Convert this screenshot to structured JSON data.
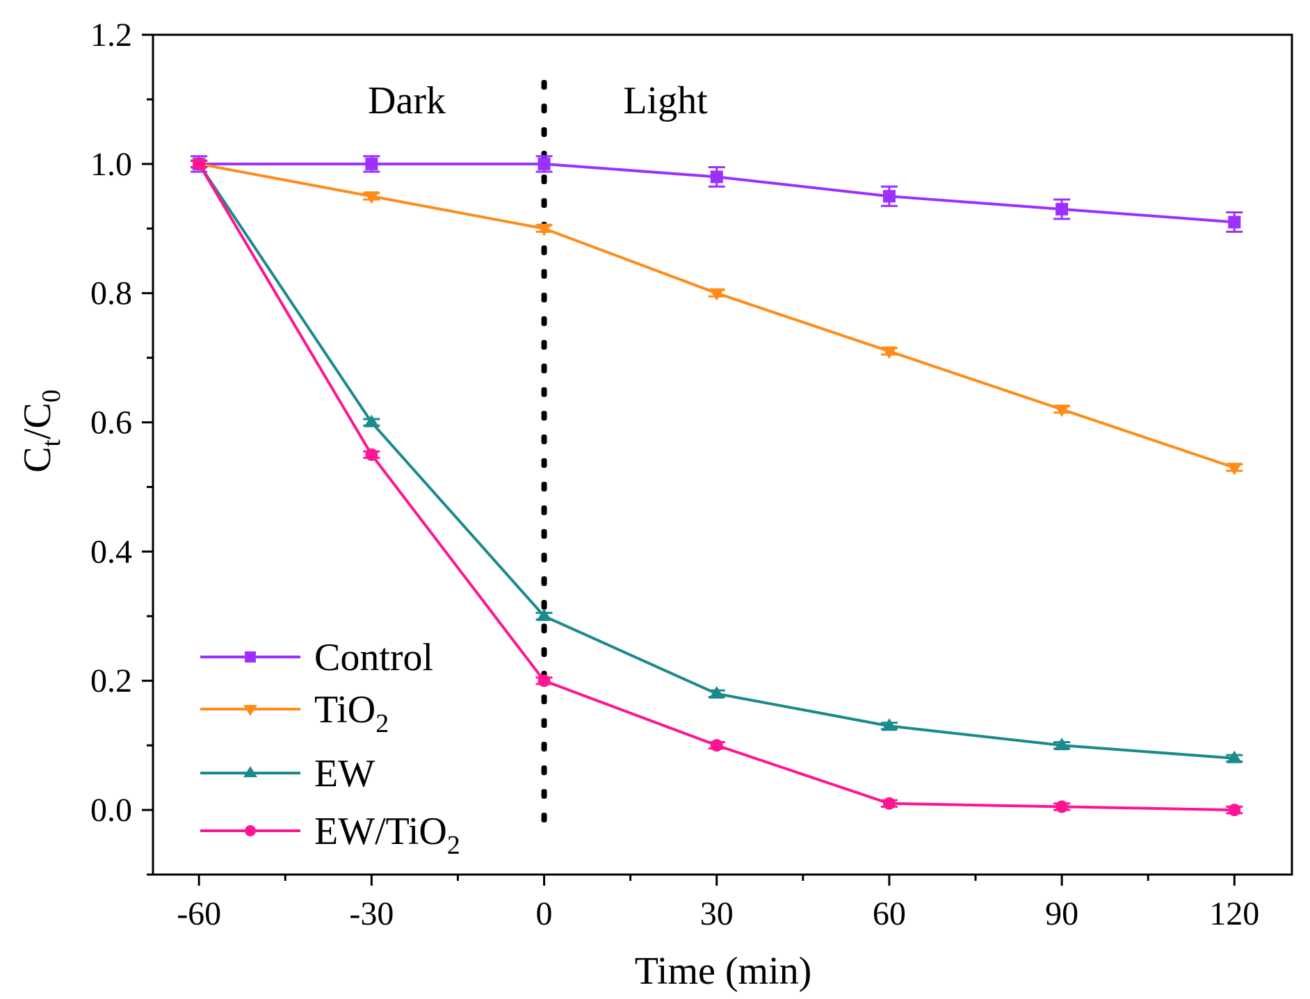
{
  "chart_data": {
    "type": "line",
    "title": "",
    "xlabel": "Time (min)",
    "ylabel": {
      "main": "C",
      "sub1": "t",
      "sep": "/C",
      "sub2": "0"
    },
    "xlim": [
      -68,
      130
    ],
    "ylim": [
      -0.1,
      1.2
    ],
    "xticks": [
      -60,
      -30,
      0,
      30,
      60,
      90,
      120
    ],
    "xtick_labels": [
      "-60",
      "-30",
      "0",
      "30",
      "60",
      "90",
      "120"
    ],
    "yticks": [
      0.0,
      0.2,
      0.4,
      0.6,
      0.8,
      1.0,
      1.2
    ],
    "ytick_labels": [
      "0.0",
      "0.2",
      "0.4",
      "0.6",
      "0.8",
      "1.0",
      "1.2"
    ],
    "x": [
      -60,
      -30,
      0,
      30,
      60,
      90,
      120
    ],
    "divider_x": 0,
    "annotations": {
      "dark": "Dark",
      "light": "Light"
    },
    "legend_position": "bottom-left",
    "series": [
      {
        "name": "Control",
        "label_main": "Control",
        "label_sub": "",
        "label_after": "",
        "color": "#9b30ff",
        "marker": "square",
        "values": [
          1.0,
          1.0,
          1.0,
          0.98,
          0.95,
          0.93,
          0.91
        ],
        "errors": [
          0.012,
          0.012,
          0.012,
          0.015,
          0.015,
          0.015,
          0.015
        ]
      },
      {
        "name": "TiO2",
        "label_main": "TiO",
        "label_sub": "2",
        "label_after": "",
        "color": "#ff8c1a",
        "marker": "triangle-down",
        "values": [
          1.0,
          0.95,
          0.9,
          0.8,
          0.71,
          0.62,
          0.53
        ],
        "errors": [
          0.005,
          0.005,
          0.005,
          0.005,
          0.005,
          0.005,
          0.005
        ]
      },
      {
        "name": "EW",
        "label_main": "EW",
        "label_sub": "",
        "label_after": "",
        "color": "#1a8a8a",
        "marker": "triangle-up",
        "values": [
          1.0,
          0.6,
          0.3,
          0.18,
          0.13,
          0.1,
          0.08
        ],
        "errors": [
          0.005,
          0.005,
          0.005,
          0.005,
          0.005,
          0.005,
          0.005
        ]
      },
      {
        "name": "EW/TiO2",
        "label_main": "EW/TiO",
        "label_sub": "2",
        "label_after": "",
        "color": "#ff1493",
        "marker": "circle",
        "values": [
          1.0,
          0.55,
          0.2,
          0.1,
          0.01,
          0.005,
          0.0
        ],
        "errors": [
          0.005,
          0.005,
          0.005,
          0.005,
          0.005,
          0.005,
          0.005
        ]
      }
    ]
  }
}
